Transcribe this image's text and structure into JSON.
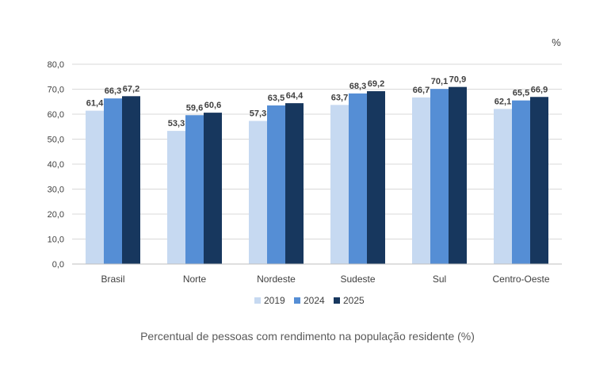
{
  "chart_data": {
    "type": "bar",
    "unit_label": "%",
    "categories": [
      "Brasil",
      "Norte",
      "Nordeste",
      "Sudeste",
      "Sul",
      "Centro-Oeste"
    ],
    "series": [
      {
        "name": "2019",
        "color": "#c6d9f1",
        "values": [
          61.4,
          53.3,
          57.3,
          63.7,
          66.7,
          62.1
        ],
        "labels": [
          "61,4",
          "53,3",
          "57,3",
          "63,7",
          "66,7",
          "62,1"
        ]
      },
      {
        "name": "2024",
        "color": "#558ed5",
        "values": [
          66.3,
          59.6,
          63.5,
          68.3,
          70.1,
          65.5
        ],
        "labels": [
          "66,3",
          "59,6",
          "63,5",
          "68,3",
          "70,1",
          "65,5"
        ]
      },
      {
        "name": "2025",
        "color": "#17375e",
        "values": [
          67.2,
          60.6,
          64.4,
          69.2,
          70.9,
          66.9
        ],
        "labels": [
          "67,2",
          "60,6",
          "64,4",
          "69,2",
          "70,9",
          "66,9"
        ]
      }
    ],
    "ylim": [
      0,
      80
    ],
    "yticks": [
      0,
      10,
      20,
      30,
      40,
      50,
      60,
      70,
      80
    ],
    "ytick_labels": [
      "0,0",
      "10,0",
      "20,0",
      "30,0",
      "40,0",
      "50,0",
      "60,0",
      "70,0",
      "80,0"
    ],
    "grid": true,
    "legend_position": "bottom",
    "caption": "Percentual de pessoas com rendimento na população residente (%)"
  }
}
